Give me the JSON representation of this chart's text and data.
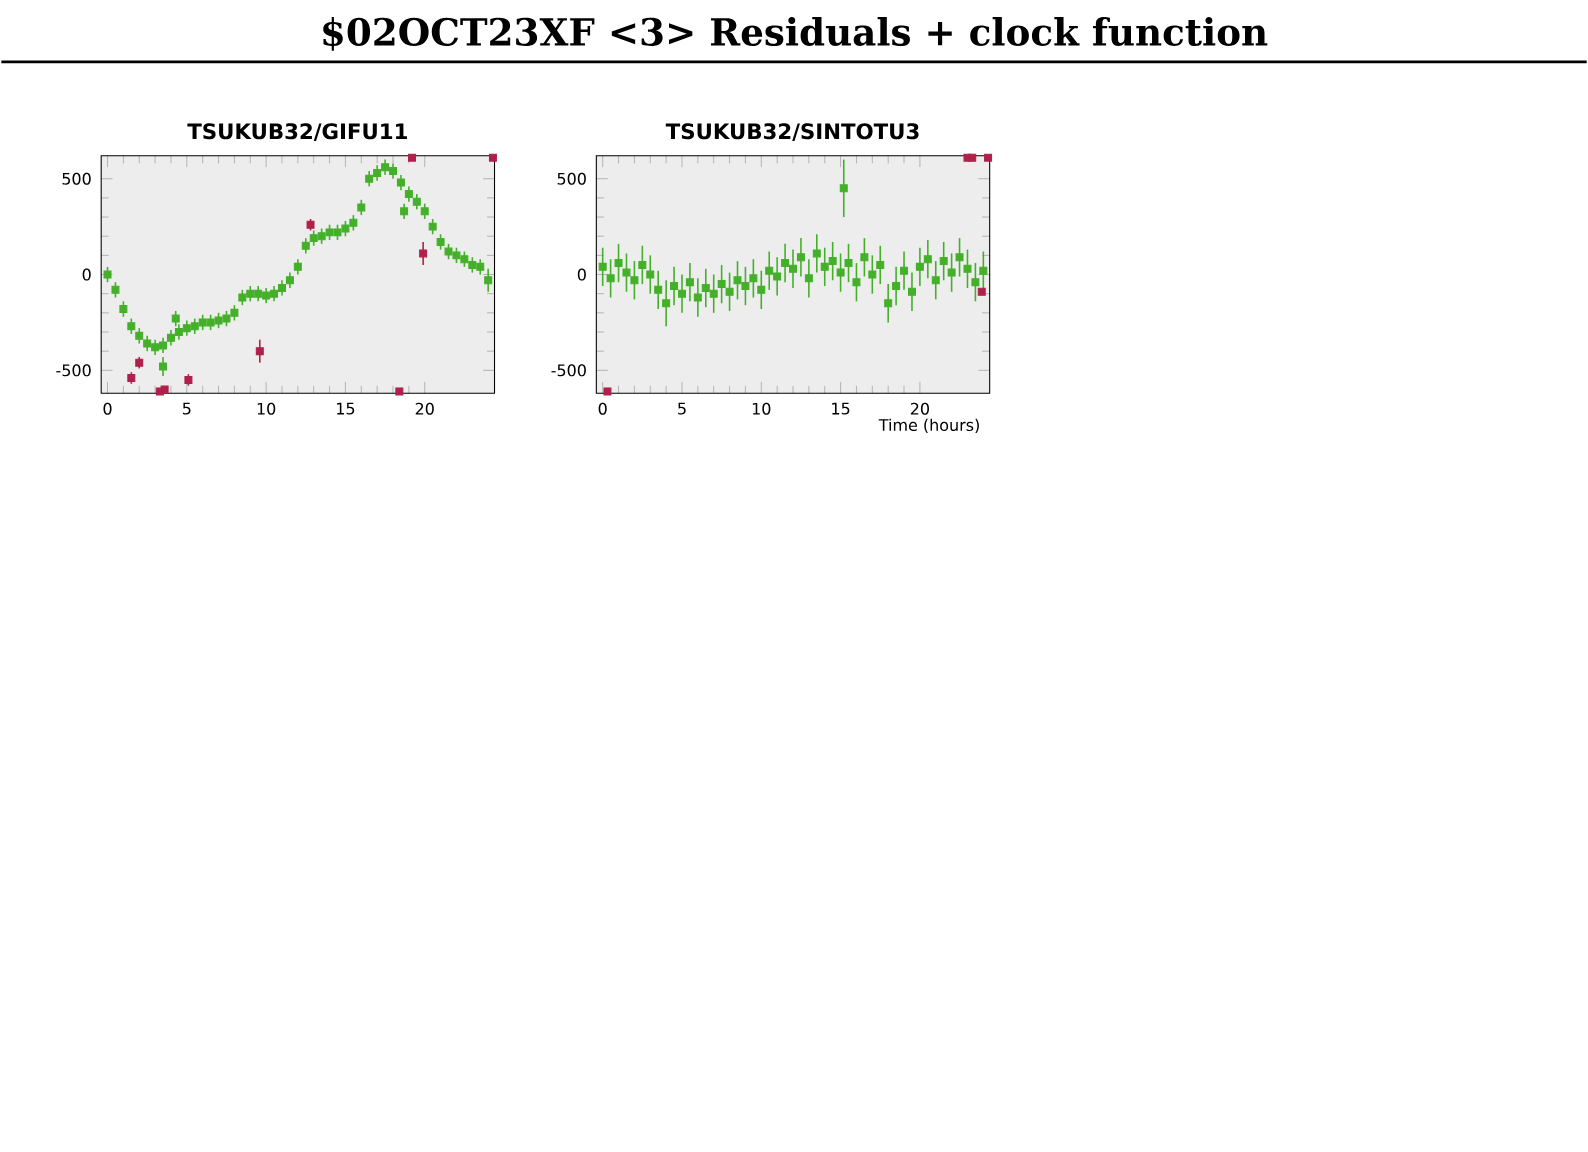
{
  "chart_data": [
    {
      "type": "scatter",
      "title": "TSUKUB32/GIFU11",
      "annotations": [
        "$02OCT23XF <3> Residuals + clock function"
      ],
      "marker": "square",
      "xlim": [
        -0.4,
        24.4
      ],
      "ylim": [
        -620,
        620
      ],
      "xticks": [
        0,
        5,
        10,
        15,
        20
      ],
      "yticks": [
        -500,
        0,
        500
      ],
      "series": [
        {
          "color": "#44b02a",
          "x": [
            0,
            0.5,
            1,
            1.5,
            2,
            2.5,
            3,
            3.5,
            3.5,
            4,
            4.3,
            4.5,
            5,
            5.5,
            6,
            6.5,
            7,
            7.5,
            8,
            8.5,
            9,
            9.5,
            10,
            10.5,
            11,
            11.5,
            12,
            12.5,
            13,
            13.5,
            14,
            14.5,
            15,
            15.5,
            16,
            16.5,
            17,
            17.5,
            18,
            18.5,
            18.7,
            19,
            19.5,
            20,
            20.5,
            21,
            21.5,
            22,
            22.5,
            23,
            23.5,
            24
          ],
          "values": [
            0,
            -80,
            -180,
            -270,
            -320,
            -360,
            -380,
            -370,
            -480,
            -330,
            -230,
            -300,
            -280,
            -270,
            -250,
            -250,
            -240,
            -230,
            -200,
            -120,
            -100,
            -100,
            -110,
            -100,
            -70,
            -30,
            40,
            150,
            190,
            200,
            220,
            220,
            240,
            270,
            350,
            500,
            530,
            560,
            540,
            480,
            330,
            420,
            380,
            330,
            250,
            170,
            120,
            100,
            80,
            50,
            40,
            -30
          ],
          "errors": [
            40,
            40,
            40,
            40,
            40,
            40,
            40,
            40,
            50,
            40,
            40,
            40,
            40,
            40,
            40,
            40,
            40,
            40,
            40,
            40,
            40,
            40,
            40,
            40,
            40,
            40,
            40,
            40,
            40,
            40,
            40,
            40,
            40,
            40,
            40,
            40,
            40,
            40,
            40,
            40,
            40,
            40,
            40,
            40,
            40,
            40,
            40,
            40,
            40,
            40,
            40,
            60
          ]
        },
        {
          "color": "#b0204a",
          "x": [
            1.5,
            2,
            3.3,
            3.6,
            5.1,
            9.6,
            12.8,
            18.4,
            19.2,
            19.9,
            24.3
          ],
          "values": [
            -540,
            -460,
            -610,
            -600,
            -550,
            -400,
            260,
            -610,
            610,
            110,
            610
          ],
          "errors": [
            30,
            30,
            null,
            null,
            30,
            60,
            30,
            null,
            null,
            60,
            null
          ]
        }
      ]
    },
    {
      "type": "scatter",
      "title": "TSUKUB32/SINTOTU3",
      "xlabel": "Time (hours)",
      "marker": "square",
      "xlim": [
        -0.4,
        24.4
      ],
      "ylim": [
        -620,
        620
      ],
      "xticks": [
        0,
        5,
        10,
        15,
        20
      ],
      "yticks": [
        -500,
        0,
        500
      ],
      "series": [
        {
          "color": "#44b02a",
          "x": [
            0,
            0.5,
            1,
            1.5,
            2,
            2.5,
            3,
            3.5,
            4,
            4.5,
            5,
            5.5,
            6,
            6.5,
            7,
            7.5,
            8,
            8.5,
            9,
            9.5,
            10,
            10.5,
            11,
            11.5,
            12,
            12.5,
            13,
            13.5,
            14,
            14.5,
            15,
            15.2,
            15.5,
            16,
            16.5,
            17,
            17.5,
            18,
            18.5,
            19,
            19.5,
            20,
            20.5,
            21,
            21.5,
            22,
            22.5,
            23,
            23.5,
            24
          ],
          "values": [
            40,
            -20,
            60,
            10,
            -30,
            50,
            0,
            -80,
            -150,
            -60,
            -100,
            -40,
            -120,
            -70,
            -100,
            -50,
            -90,
            -30,
            -60,
            -20,
            -80,
            20,
            -10,
            60,
            30,
            90,
            -20,
            110,
            40,
            70,
            10,
            450,
            60,
            -40,
            90,
            0,
            50,
            -150,
            -60,
            20,
            -90,
            40,
            80,
            -30,
            70,
            10,
            90,
            30,
            -40,
            20
          ],
          "errors": [
            100,
            100,
            100,
            100,
            100,
            100,
            100,
            100,
            120,
            100,
            100,
            100,
            100,
            100,
            100,
            100,
            100,
            100,
            100,
            100,
            100,
            100,
            100,
            100,
            100,
            100,
            100,
            100,
            100,
            100,
            100,
            150,
            100,
            100,
            100,
            100,
            100,
            100,
            100,
            100,
            100,
            100,
            100,
            100,
            100,
            100,
            100,
            100,
            100,
            100
          ]
        },
        {
          "color": "#b0204a",
          "x": [
            0.3,
            23,
            23.3,
            24.3,
            23.9
          ],
          "values": [
            -610,
            610,
            610,
            610,
            -90
          ]
        }
      ]
    }
  ]
}
